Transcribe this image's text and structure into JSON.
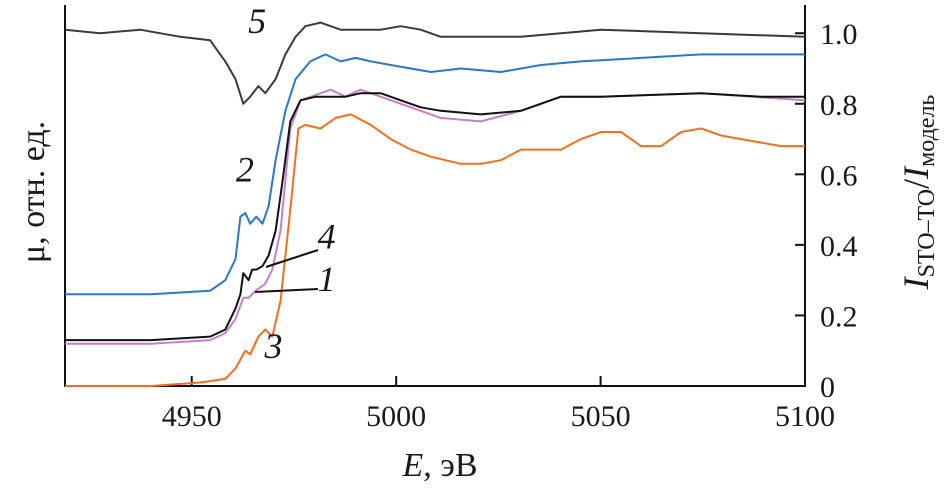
{
  "chart_data": {
    "type": "line",
    "title": "",
    "xlabel_italic": "E",
    "xlabel_rest": ", эВ",
    "ylabel_left": "μ, отн. ед.",
    "ylabel_right_main": "I",
    "ylabel_right_sub1": "STO–TO",
    "ylabel_right_slash": "/",
    "ylabel_right_main2": "I",
    "ylabel_right_sub2": "модель",
    "xlim": [
      4919,
      5100
    ],
    "ylim": [
      0,
      1.08
    ],
    "xticks": [
      4950,
      5000,
      5050,
      5100
    ],
    "xtick_labels": [
      "4950",
      "5000",
      "5050",
      "5100"
    ],
    "yticks": [
      0,
      0.2,
      0.4,
      0.6,
      0.8,
      1.0
    ],
    "ytick_labels": [
      "0",
      "0.2",
      "0.4",
      "0.6",
      "0.8",
      "1.0"
    ],
    "grid": false,
    "series": [
      {
        "name": "5",
        "color": "#3a3a3a",
        "label_pos": [
          4966,
          1.0
        ],
        "points": [
          [
            4919,
            1.01
          ],
          [
            4927.6,
            1.0
          ],
          [
            4937.4,
            1.01
          ],
          [
            4947.2,
            0.99
          ],
          [
            4954.5,
            0.98
          ],
          [
            4958.2,
            0.92
          ],
          [
            4960.7,
            0.87
          ],
          [
            4962.6,
            0.8
          ],
          [
            4964.3,
            0.82
          ],
          [
            4966.3,
            0.85
          ],
          [
            4968,
            0.83
          ],
          [
            4970.5,
            0.87
          ],
          [
            4972.9,
            0.94
          ],
          [
            4975.4,
            0.99
          ],
          [
            4977.8,
            1.02
          ],
          [
            4981.5,
            1.03
          ],
          [
            4986.4,
            1.01
          ],
          [
            4991.3,
            1.01
          ],
          [
            4996.2,
            1.01
          ],
          [
            5001.1,
            1.02
          ],
          [
            5006,
            1.01
          ],
          [
            5010.9,
            0.99
          ],
          [
            5020.7,
            0.99
          ],
          [
            5030.5,
            0.99
          ],
          [
            5040.3,
            1.0
          ],
          [
            5050.1,
            1.01
          ],
          [
            5074.6,
            1.0
          ],
          [
            5100,
            0.99
          ]
        ]
      },
      {
        "name": "2",
        "color": "#2a78c8",
        "label_pos": [
          4963,
          0.58
        ],
        "points": [
          [
            4919,
            0.26
          ],
          [
            4940,
            0.26
          ],
          [
            4954.5,
            0.27
          ],
          [
            4958.2,
            0.3
          ],
          [
            4960.7,
            0.36
          ],
          [
            4961.9,
            0.48
          ],
          [
            4963.1,
            0.49
          ],
          [
            4964.3,
            0.46
          ],
          [
            4965.8,
            0.48
          ],
          [
            4967.3,
            0.46
          ],
          [
            4968.8,
            0.51
          ],
          [
            4970.5,
            0.64
          ],
          [
            4972.9,
            0.78
          ],
          [
            4975.4,
            0.87
          ],
          [
            4979,
            0.92
          ],
          [
            4982.7,
            0.94
          ],
          [
            4986.4,
            0.92
          ],
          [
            4990.1,
            0.93
          ],
          [
            4993.8,
            0.92
          ],
          [
            4998.7,
            0.91
          ],
          [
            5003.6,
            0.9
          ],
          [
            5008.5,
            0.89
          ],
          [
            5015.8,
            0.9
          ],
          [
            5025.6,
            0.89
          ],
          [
            5035.4,
            0.91
          ],
          [
            5045.2,
            0.92
          ],
          [
            5059.9,
            0.93
          ],
          [
            5074.6,
            0.94
          ],
          [
            5100,
            0.94
          ]
        ]
      },
      {
        "name": "1",
        "color": "#c77fc8",
        "label_pos": [
          4983,
          0.27
        ],
        "points": [
          [
            4919,
            0.12
          ],
          [
            4940,
            0.12
          ],
          [
            4954.5,
            0.13
          ],
          [
            4958.2,
            0.15
          ],
          [
            4960.7,
            0.19
          ],
          [
            4962.6,
            0.25
          ],
          [
            4963.9,
            0.25
          ],
          [
            4965.6,
            0.27
          ],
          [
            4968,
            0.29
          ],
          [
            4969.7,
            0.33
          ],
          [
            4971.7,
            0.44
          ],
          [
            4974.1,
            0.73
          ],
          [
            4976.6,
            0.81
          ],
          [
            4984,
            0.84
          ],
          [
            4987.6,
            0.82
          ],
          [
            4991.3,
            0.84
          ],
          [
            4996.2,
            0.82
          ],
          [
            5001.1,
            0.8
          ],
          [
            5006,
            0.78
          ],
          [
            5010.9,
            0.76
          ],
          [
            5020.7,
            0.75
          ],
          [
            5030.5,
            0.78
          ],
          [
            5040.3,
            0.82
          ],
          [
            5050.1,
            0.82
          ],
          [
            5074.6,
            0.83
          ],
          [
            5100,
            0.81
          ]
        ]
      },
      {
        "name": "4",
        "color": "#111111",
        "label_pos": [
          4983,
          0.39
        ],
        "points": [
          [
            4919,
            0.13
          ],
          [
            4940,
            0.13
          ],
          [
            4954.5,
            0.14
          ],
          [
            4958.2,
            0.16
          ],
          [
            4960.7,
            0.22
          ],
          [
            4961.9,
            0.26
          ],
          [
            4962.6,
            0.32
          ],
          [
            4963.9,
            0.3
          ],
          [
            4964.8,
            0.33
          ],
          [
            4965.8,
            0.33
          ],
          [
            4967.3,
            0.34
          ],
          [
            4968.8,
            0.37
          ],
          [
            4970.5,
            0.44
          ],
          [
            4972.2,
            0.58
          ],
          [
            4974.1,
            0.75
          ],
          [
            4976.6,
            0.81
          ],
          [
            4980.3,
            0.82
          ],
          [
            4984,
            0.82
          ],
          [
            4987.6,
            0.82
          ],
          [
            4991.3,
            0.83
          ],
          [
            4996.2,
            0.83
          ],
          [
            5001.1,
            0.81
          ],
          [
            5006,
            0.79
          ],
          [
            5010.9,
            0.78
          ],
          [
            5020.7,
            0.77
          ],
          [
            5030.5,
            0.78
          ],
          [
            5040.3,
            0.82
          ],
          [
            5050.1,
            0.82
          ],
          [
            5074.6,
            0.83
          ],
          [
            5089.3,
            0.82
          ],
          [
            5100,
            0.82
          ]
        ]
      },
      {
        "name": "3",
        "color": "#f07020",
        "label_pos": [
          4970,
          0.08
        ],
        "points": [
          [
            4919,
            0.0
          ],
          [
            4940,
            0.0
          ],
          [
            4952.1,
            0.01
          ],
          [
            4958.2,
            0.02
          ],
          [
            4960.7,
            0.05
          ],
          [
            4963.1,
            0.1
          ],
          [
            4964.3,
            0.09
          ],
          [
            4966.3,
            0.14
          ],
          [
            4968,
            0.16
          ],
          [
            4969.7,
            0.14
          ],
          [
            4971.7,
            0.24
          ],
          [
            4974.1,
            0.5
          ],
          [
            4976.1,
            0.73
          ],
          [
            4977.8,
            0.74
          ],
          [
            4981.5,
            0.73
          ],
          [
            4985.2,
            0.76
          ],
          [
            4988.9,
            0.77
          ],
          [
            4993.8,
            0.74
          ],
          [
            4998.7,
            0.7
          ],
          [
            5003.6,
            0.67
          ],
          [
            5008.5,
            0.65
          ],
          [
            5015.8,
            0.63
          ],
          [
            5020.7,
            0.63
          ],
          [
            5025.6,
            0.64
          ],
          [
            5030.5,
            0.67
          ],
          [
            5035.4,
            0.67
          ],
          [
            5040.3,
            0.67
          ],
          [
            5045.2,
            0.7
          ],
          [
            5050.1,
            0.72
          ],
          [
            5055,
            0.72
          ],
          [
            5059.9,
            0.68
          ],
          [
            5064.8,
            0.68
          ],
          [
            5069.7,
            0.72
          ],
          [
            5074.6,
            0.73
          ],
          [
            5079.5,
            0.71
          ],
          [
            5084.4,
            0.7
          ],
          [
            5089.3,
            0.69
          ],
          [
            5094.2,
            0.68
          ],
          [
            5100,
            0.68
          ]
        ]
      }
    ]
  }
}
